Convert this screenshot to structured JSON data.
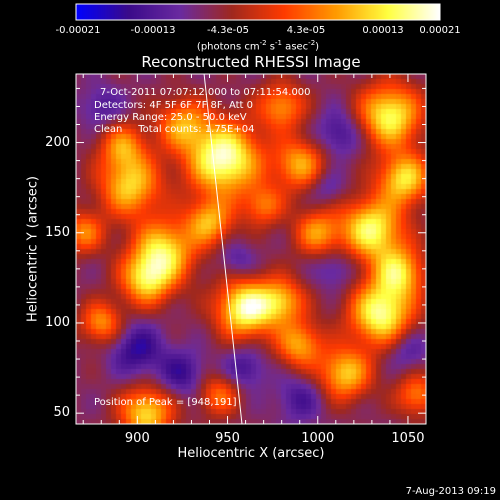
{
  "chart_data": {
    "type": "heatmap",
    "title": "Reconstructed RHESSI Image",
    "xlabel": "Heliocentric X (arcsec)",
    "ylabel": "Heliocentric Y (arcsec)",
    "x_ticks": [
      900,
      950,
      1000,
      1050
    ],
    "y_ticks": [
      50,
      100,
      150,
      200
    ],
    "xlim": [
      866,
      1060
    ],
    "ylim": [
      44,
      238
    ],
    "colorbar": {
      "ticks": [
        "-0.00021",
        "-0.00013",
        "-4.3e-05",
        "4.3e-05",
        "0.00013",
        "0.00021"
      ],
      "range": [
        -0.00021,
        0.00021
      ],
      "unit_label": "(photons cm",
      "unit_exp1": "-2",
      "unit_mid": " s",
      "unit_exp2": "-1",
      "unit_end": " asec",
      "unit_exp3": "-2",
      "unit_close": ")",
      "colors": [
        "#0000ff",
        "#3a0a8a",
        "#6a2aa0",
        "#a0281e",
        "#ff3a00",
        "#ff9a00",
        "#ffff40",
        "#ffffff"
      ]
    },
    "annotations": [
      "7-Oct-2011 07:07:12.000 to 07:11:54.000",
      "Detectors: 4F 5F 6F 7F 8F, Att 0",
      "Energy Range: 25.0 - 50.0 keV",
      "Clean     Total counts: 1.75E+04"
    ],
    "peak_label": "Position of Peak = [948,191]",
    "peak": [
      948,
      191
    ],
    "limb_line": [
      [
        937,
        238
      ],
      [
        958,
        44
      ]
    ],
    "sources": [
      {
        "x": 948,
        "y": 191,
        "s": 14,
        "a": 1.0
      },
      {
        "x": 960,
        "y": 108,
        "s": 11,
        "a": 0.95
      },
      {
        "x": 896,
        "y": 176,
        "s": 12,
        "a": 0.7
      },
      {
        "x": 892,
        "y": 198,
        "s": 9,
        "a": 0.5
      },
      {
        "x": 915,
        "y": 140,
        "s": 12,
        "a": 0.75
      },
      {
        "x": 905,
        "y": 124,
        "s": 10,
        "a": 0.7
      },
      {
        "x": 940,
        "y": 156,
        "s": 9,
        "a": 0.6
      },
      {
        "x": 925,
        "y": 210,
        "s": 10,
        "a": 0.55
      },
      {
        "x": 980,
        "y": 220,
        "s": 9,
        "a": 0.55
      },
      {
        "x": 990,
        "y": 188,
        "s": 10,
        "a": 0.6
      },
      {
        "x": 1040,
        "y": 215,
        "s": 12,
        "a": 0.85
      },
      {
        "x": 1048,
        "y": 180,
        "s": 10,
        "a": 0.75
      },
      {
        "x": 1030,
        "y": 152,
        "s": 12,
        "a": 0.85
      },
      {
        "x": 1045,
        "y": 128,
        "s": 10,
        "a": 0.7
      },
      {
        "x": 1035,
        "y": 105,
        "s": 12,
        "a": 0.9
      },
      {
        "x": 1015,
        "y": 72,
        "s": 10,
        "a": 0.7
      },
      {
        "x": 980,
        "y": 112,
        "s": 9,
        "a": 0.6
      },
      {
        "x": 1000,
        "y": 150,
        "s": 9,
        "a": 0.55
      },
      {
        "x": 990,
        "y": 88,
        "s": 9,
        "a": 0.6
      },
      {
        "x": 880,
        "y": 100,
        "s": 8,
        "a": 0.55
      },
      {
        "x": 905,
        "y": 50,
        "s": 10,
        "a": 0.75
      },
      {
        "x": 945,
        "y": 60,
        "s": 8,
        "a": 0.45
      },
      {
        "x": 870,
        "y": 150,
        "s": 8,
        "a": 0.5
      },
      {
        "x": 970,
        "y": 165,
        "s": 8,
        "a": 0.45
      },
      {
        "x": 1055,
        "y": 60,
        "s": 8,
        "a": 0.5
      }
    ],
    "negatives": [
      {
        "x": 1012,
        "y": 205,
        "s": 9,
        "a": 0.6
      },
      {
        "x": 900,
        "y": 85,
        "s": 10,
        "a": 0.7
      },
      {
        "x": 925,
        "y": 72,
        "s": 9,
        "a": 0.6
      },
      {
        "x": 990,
        "y": 58,
        "s": 9,
        "a": 0.5
      },
      {
        "x": 960,
        "y": 75,
        "s": 8,
        "a": 0.55
      },
      {
        "x": 1010,
        "y": 130,
        "s": 8,
        "a": 0.45
      },
      {
        "x": 955,
        "y": 135,
        "s": 7,
        "a": 0.4
      },
      {
        "x": 880,
        "y": 220,
        "s": 8,
        "a": 0.45
      },
      {
        "x": 1005,
        "y": 175,
        "s": 7,
        "a": 0.4
      },
      {
        "x": 1050,
        "y": 85,
        "s": 8,
        "a": 0.45
      }
    ]
  },
  "footer": {
    "timestamp": "7-Aug-2013 09:19"
  }
}
